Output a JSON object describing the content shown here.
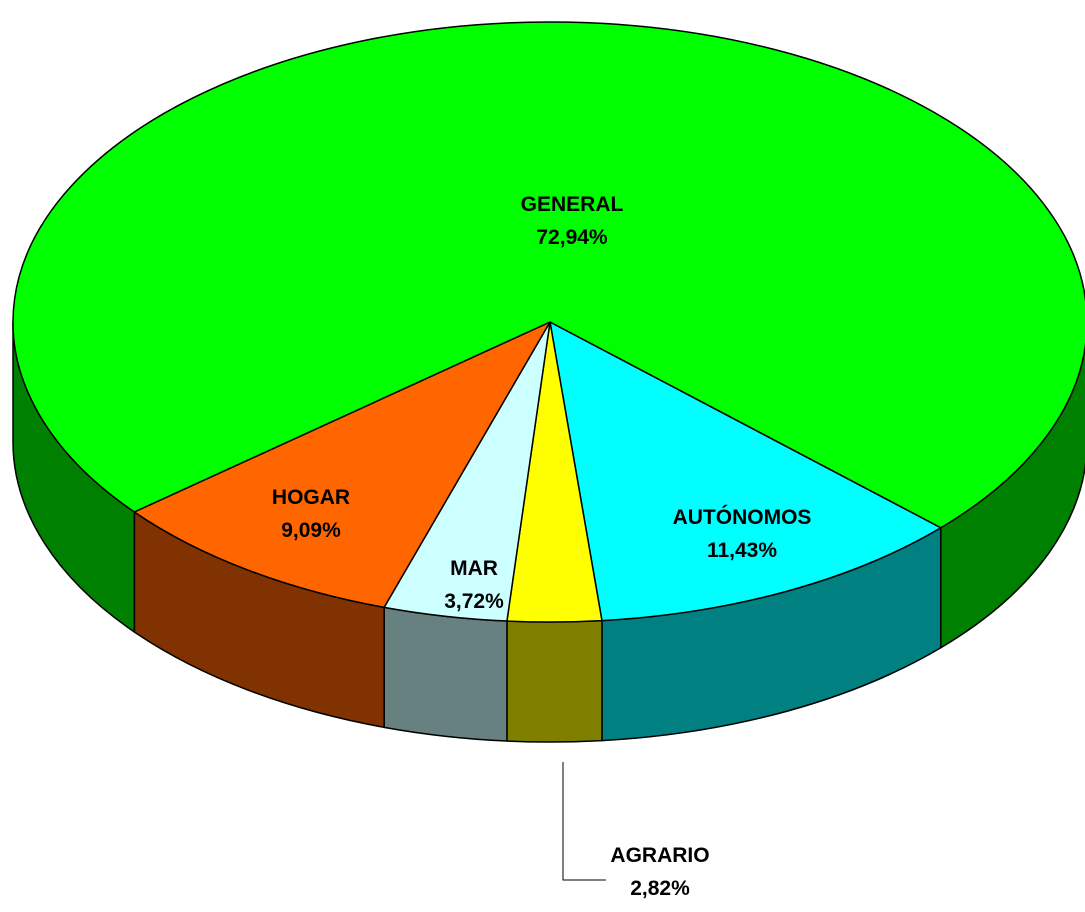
{
  "chart_data": {
    "type": "pie3d",
    "categories": [
      "AUTÓNOMOS",
      "AGRARIO",
      "MAR",
      "HOGAR",
      "GENERAL"
    ],
    "values": [
      11.43,
      2.82,
      3.72,
      9.09,
      72.94
    ],
    "value_labels": [
      "11,43%",
      "2,82%",
      "3,72%",
      "9,09%",
      "72,94%"
    ],
    "colors": [
      "#00ffff",
      "#ffff00",
      "#ccffff",
      "#ff6600",
      "#00ff00"
    ],
    "side_colors": [
      "#008080",
      "#808000",
      "#678080",
      "#803300",
      "#008000"
    ]
  }
}
